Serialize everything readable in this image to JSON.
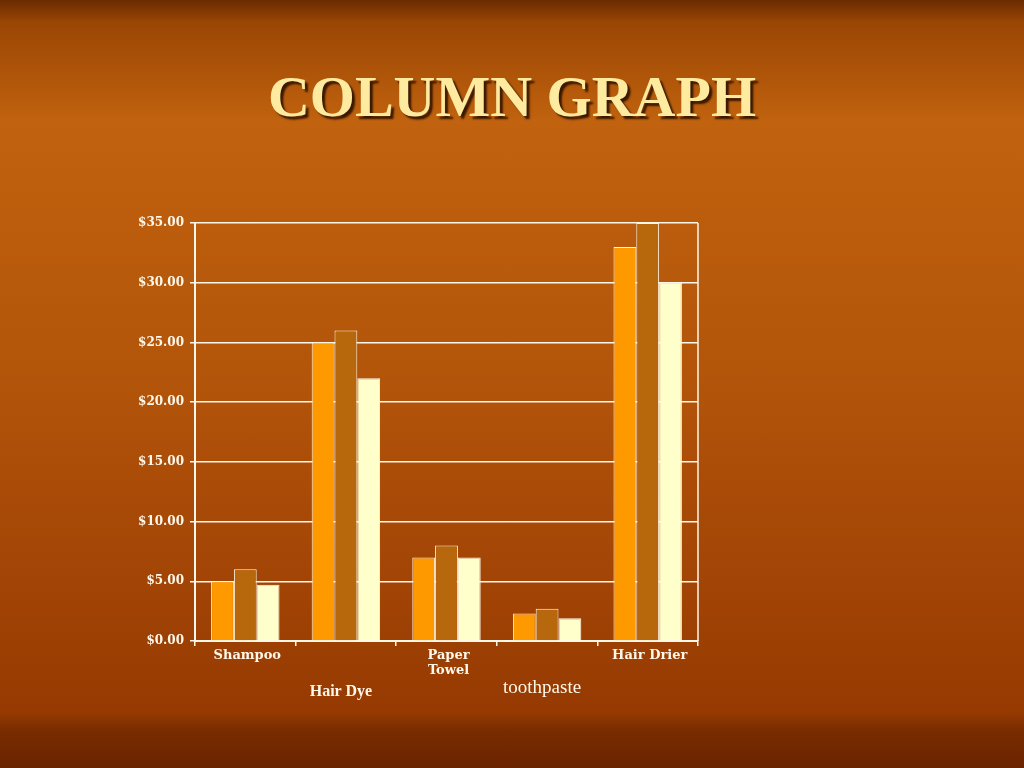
{
  "chart_data": {
    "type": "bar",
    "title": "COLUMN GRAPH",
    "categories": [
      "Shampoo",
      "Hair Dye",
      "Paper Towel",
      "toothpaste",
      "Hair Drier"
    ],
    "series": [
      {
        "color": "#ff9900",
        "values": [
          5,
          25,
          7,
          2.3,
          33
        ]
      },
      {
        "color": "#b8680c",
        "values": [
          6,
          26,
          8,
          2.7,
          35
        ]
      },
      {
        "color": "#ffffcc",
        "values": [
          4.7,
          22,
          7,
          1.9,
          30
        ]
      }
    ],
    "ylim": [
      0,
      35
    ],
    "yticks": [
      {
        "value": 0,
        "label": "$0.00"
      },
      {
        "value": 5,
        "label": "$5.00"
      },
      {
        "value": 10,
        "label": "$10.00"
      },
      {
        "value": 15,
        "label": "$15.00"
      },
      {
        "value": 20,
        "label": "$20.00"
      },
      {
        "value": 25,
        "label": "$25.00"
      },
      {
        "value": 30,
        "label": "$30.00"
      },
      {
        "value": 35,
        "label": "$35.00"
      }
    ],
    "grid": "y"
  }
}
